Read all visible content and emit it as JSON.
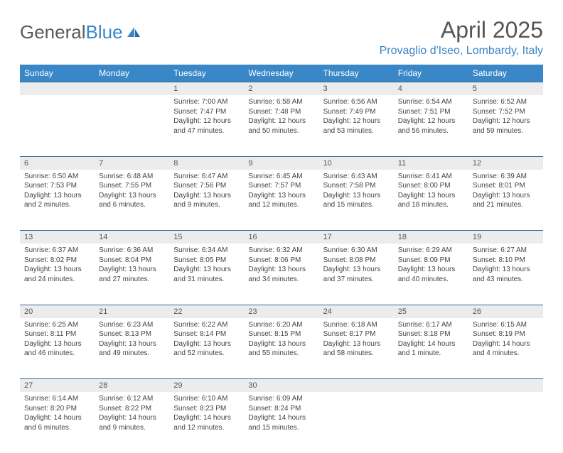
{
  "brand": {
    "part1": "General",
    "part2": "Blue"
  },
  "title": "April 2025",
  "location": "Provaglio d'Iseo, Lombardy, Italy",
  "colors": {
    "header_bg": "#3a87c8",
    "header_fg": "#ffffff",
    "daynum_bg": "#ececec",
    "border": "#34679a",
    "text": "#444444",
    "title_color": "#555555"
  },
  "day_headers": [
    "Sunday",
    "Monday",
    "Tuesday",
    "Wednesday",
    "Thursday",
    "Friday",
    "Saturday"
  ],
  "weeks": [
    [
      null,
      null,
      {
        "n": "1",
        "sunrise": "Sunrise: 7:00 AM",
        "sunset": "Sunset: 7:47 PM",
        "day1": "Daylight: 12 hours",
        "day2": "and 47 minutes."
      },
      {
        "n": "2",
        "sunrise": "Sunrise: 6:58 AM",
        "sunset": "Sunset: 7:48 PM",
        "day1": "Daylight: 12 hours",
        "day2": "and 50 minutes."
      },
      {
        "n": "3",
        "sunrise": "Sunrise: 6:56 AM",
        "sunset": "Sunset: 7:49 PM",
        "day1": "Daylight: 12 hours",
        "day2": "and 53 minutes."
      },
      {
        "n": "4",
        "sunrise": "Sunrise: 6:54 AM",
        "sunset": "Sunset: 7:51 PM",
        "day1": "Daylight: 12 hours",
        "day2": "and 56 minutes."
      },
      {
        "n": "5",
        "sunrise": "Sunrise: 6:52 AM",
        "sunset": "Sunset: 7:52 PM",
        "day1": "Daylight: 12 hours",
        "day2": "and 59 minutes."
      }
    ],
    [
      {
        "n": "6",
        "sunrise": "Sunrise: 6:50 AM",
        "sunset": "Sunset: 7:53 PM",
        "day1": "Daylight: 13 hours",
        "day2": "and 2 minutes."
      },
      {
        "n": "7",
        "sunrise": "Sunrise: 6:48 AM",
        "sunset": "Sunset: 7:55 PM",
        "day1": "Daylight: 13 hours",
        "day2": "and 6 minutes."
      },
      {
        "n": "8",
        "sunrise": "Sunrise: 6:47 AM",
        "sunset": "Sunset: 7:56 PM",
        "day1": "Daylight: 13 hours",
        "day2": "and 9 minutes."
      },
      {
        "n": "9",
        "sunrise": "Sunrise: 6:45 AM",
        "sunset": "Sunset: 7:57 PM",
        "day1": "Daylight: 13 hours",
        "day2": "and 12 minutes."
      },
      {
        "n": "10",
        "sunrise": "Sunrise: 6:43 AM",
        "sunset": "Sunset: 7:58 PM",
        "day1": "Daylight: 13 hours",
        "day2": "and 15 minutes."
      },
      {
        "n": "11",
        "sunrise": "Sunrise: 6:41 AM",
        "sunset": "Sunset: 8:00 PM",
        "day1": "Daylight: 13 hours",
        "day2": "and 18 minutes."
      },
      {
        "n": "12",
        "sunrise": "Sunrise: 6:39 AM",
        "sunset": "Sunset: 8:01 PM",
        "day1": "Daylight: 13 hours",
        "day2": "and 21 minutes."
      }
    ],
    [
      {
        "n": "13",
        "sunrise": "Sunrise: 6:37 AM",
        "sunset": "Sunset: 8:02 PM",
        "day1": "Daylight: 13 hours",
        "day2": "and 24 minutes."
      },
      {
        "n": "14",
        "sunrise": "Sunrise: 6:36 AM",
        "sunset": "Sunset: 8:04 PM",
        "day1": "Daylight: 13 hours",
        "day2": "and 27 minutes."
      },
      {
        "n": "15",
        "sunrise": "Sunrise: 6:34 AM",
        "sunset": "Sunset: 8:05 PM",
        "day1": "Daylight: 13 hours",
        "day2": "and 31 minutes."
      },
      {
        "n": "16",
        "sunrise": "Sunrise: 6:32 AM",
        "sunset": "Sunset: 8:06 PM",
        "day1": "Daylight: 13 hours",
        "day2": "and 34 minutes."
      },
      {
        "n": "17",
        "sunrise": "Sunrise: 6:30 AM",
        "sunset": "Sunset: 8:08 PM",
        "day1": "Daylight: 13 hours",
        "day2": "and 37 minutes."
      },
      {
        "n": "18",
        "sunrise": "Sunrise: 6:29 AM",
        "sunset": "Sunset: 8:09 PM",
        "day1": "Daylight: 13 hours",
        "day2": "and 40 minutes."
      },
      {
        "n": "19",
        "sunrise": "Sunrise: 6:27 AM",
        "sunset": "Sunset: 8:10 PM",
        "day1": "Daylight: 13 hours",
        "day2": "and 43 minutes."
      }
    ],
    [
      {
        "n": "20",
        "sunrise": "Sunrise: 6:25 AM",
        "sunset": "Sunset: 8:11 PM",
        "day1": "Daylight: 13 hours",
        "day2": "and 46 minutes."
      },
      {
        "n": "21",
        "sunrise": "Sunrise: 6:23 AM",
        "sunset": "Sunset: 8:13 PM",
        "day1": "Daylight: 13 hours",
        "day2": "and 49 minutes."
      },
      {
        "n": "22",
        "sunrise": "Sunrise: 6:22 AM",
        "sunset": "Sunset: 8:14 PM",
        "day1": "Daylight: 13 hours",
        "day2": "and 52 minutes."
      },
      {
        "n": "23",
        "sunrise": "Sunrise: 6:20 AM",
        "sunset": "Sunset: 8:15 PM",
        "day1": "Daylight: 13 hours",
        "day2": "and 55 minutes."
      },
      {
        "n": "24",
        "sunrise": "Sunrise: 6:18 AM",
        "sunset": "Sunset: 8:17 PM",
        "day1": "Daylight: 13 hours",
        "day2": "and 58 minutes."
      },
      {
        "n": "25",
        "sunrise": "Sunrise: 6:17 AM",
        "sunset": "Sunset: 8:18 PM",
        "day1": "Daylight: 14 hours",
        "day2": "and 1 minute."
      },
      {
        "n": "26",
        "sunrise": "Sunrise: 6:15 AM",
        "sunset": "Sunset: 8:19 PM",
        "day1": "Daylight: 14 hours",
        "day2": "and 4 minutes."
      }
    ],
    [
      {
        "n": "27",
        "sunrise": "Sunrise: 6:14 AM",
        "sunset": "Sunset: 8:20 PM",
        "day1": "Daylight: 14 hours",
        "day2": "and 6 minutes."
      },
      {
        "n": "28",
        "sunrise": "Sunrise: 6:12 AM",
        "sunset": "Sunset: 8:22 PM",
        "day1": "Daylight: 14 hours",
        "day2": "and 9 minutes."
      },
      {
        "n": "29",
        "sunrise": "Sunrise: 6:10 AM",
        "sunset": "Sunset: 8:23 PM",
        "day1": "Daylight: 14 hours",
        "day2": "and 12 minutes."
      },
      {
        "n": "30",
        "sunrise": "Sunrise: 6:09 AM",
        "sunset": "Sunset: 8:24 PM",
        "day1": "Daylight: 14 hours",
        "day2": "and 15 minutes."
      },
      null,
      null,
      null
    ]
  ]
}
